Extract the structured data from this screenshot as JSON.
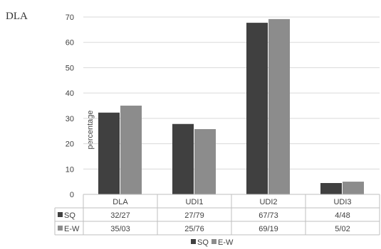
{
  "chart_data": {
    "type": "bar",
    "title": "DLA",
    "ylabel": "percentage",
    "xlabel": "",
    "ylim": [
      0,
      70
    ],
    "yticks": [
      0,
      10,
      20,
      30,
      40,
      50,
      60,
      70
    ],
    "grid": true,
    "legend_position": "bottom",
    "categories": [
      "DLA",
      "UDI1",
      "UDI2",
      "UDI3"
    ],
    "series": [
      {
        "name": "SQ",
        "color": "#404040",
        "values": [
          32.27,
          27.79,
          67.73,
          4.48
        ],
        "labels": [
          "32/27",
          "27/79",
          "67/73",
          "4/48"
        ]
      },
      {
        "name": "E-W",
        "color": "#8c8c8c",
        "values": [
          35.03,
          25.76,
          69.19,
          5.02
        ],
        "labels": [
          "35/03",
          "25/76",
          "69/19",
          "5/02"
        ]
      }
    ]
  }
}
